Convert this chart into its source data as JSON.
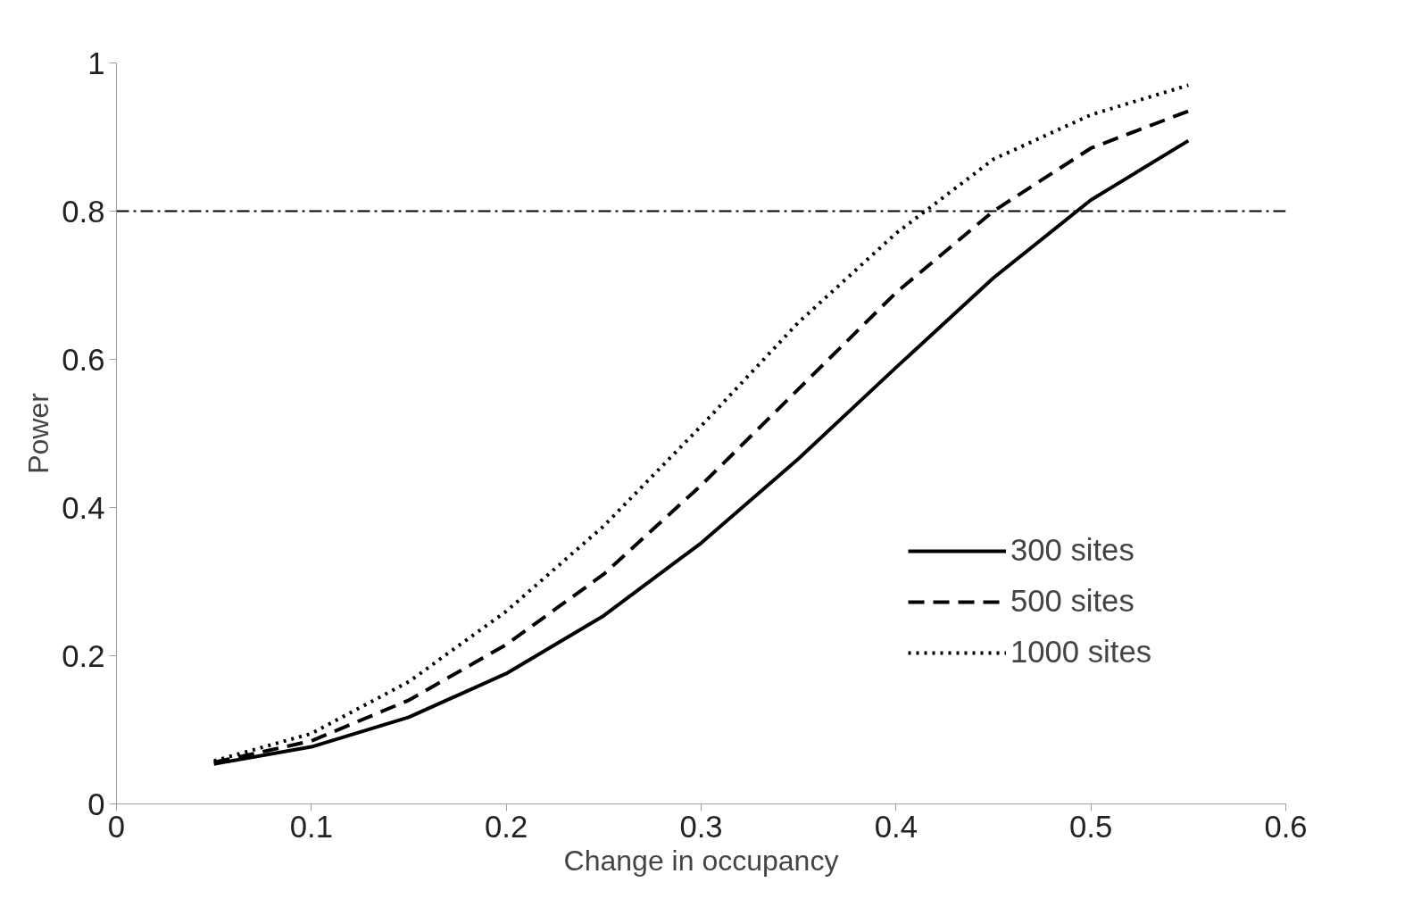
{
  "chart_data": {
    "type": "line",
    "xlabel": "Change in occupancy",
    "ylabel": "Power",
    "x": [
      0.05,
      0.1,
      0.15,
      0.2,
      0.25,
      0.3,
      0.35,
      0.4,
      0.45,
      0.5,
      0.55
    ],
    "series": [
      {
        "name": "300 sites",
        "color": "#000000",
        "line_style": "solid",
        "values": [
          0.054,
          0.077,
          0.117,
          0.176,
          0.254,
          0.352,
          0.466,
          0.589,
          0.71,
          0.815,
          0.895
        ]
      },
      {
        "name": "500 sites",
        "color": "#000000",
        "line_style": "dashed",
        "values": [
          0.056,
          0.085,
          0.14,
          0.215,
          0.31,
          0.43,
          0.56,
          0.69,
          0.8,
          0.885,
          0.935
        ]
      },
      {
        "name": "1000 sites",
        "color": "#000000",
        "line_style": "dotted",
        "values": [
          0.058,
          0.095,
          0.165,
          0.26,
          0.375,
          0.51,
          0.65,
          0.77,
          0.87,
          0.93,
          0.97
        ]
      }
    ],
    "xlim": [
      0,
      0.6
    ],
    "xticks": [
      0,
      0.1,
      0.2,
      0.3,
      0.4,
      0.5,
      0.6
    ],
    "ylim": [
      0,
      1
    ],
    "yticks": [
      0,
      0.2,
      0.4,
      0.6,
      0.8,
      1
    ],
    "ref_lines": [
      {
        "axis": "y",
        "value": 0.8,
        "color": "#000000",
        "line_style": "dashdot"
      }
    ],
    "grid": false,
    "legend": "bottom right",
    "marker": "none"
  }
}
